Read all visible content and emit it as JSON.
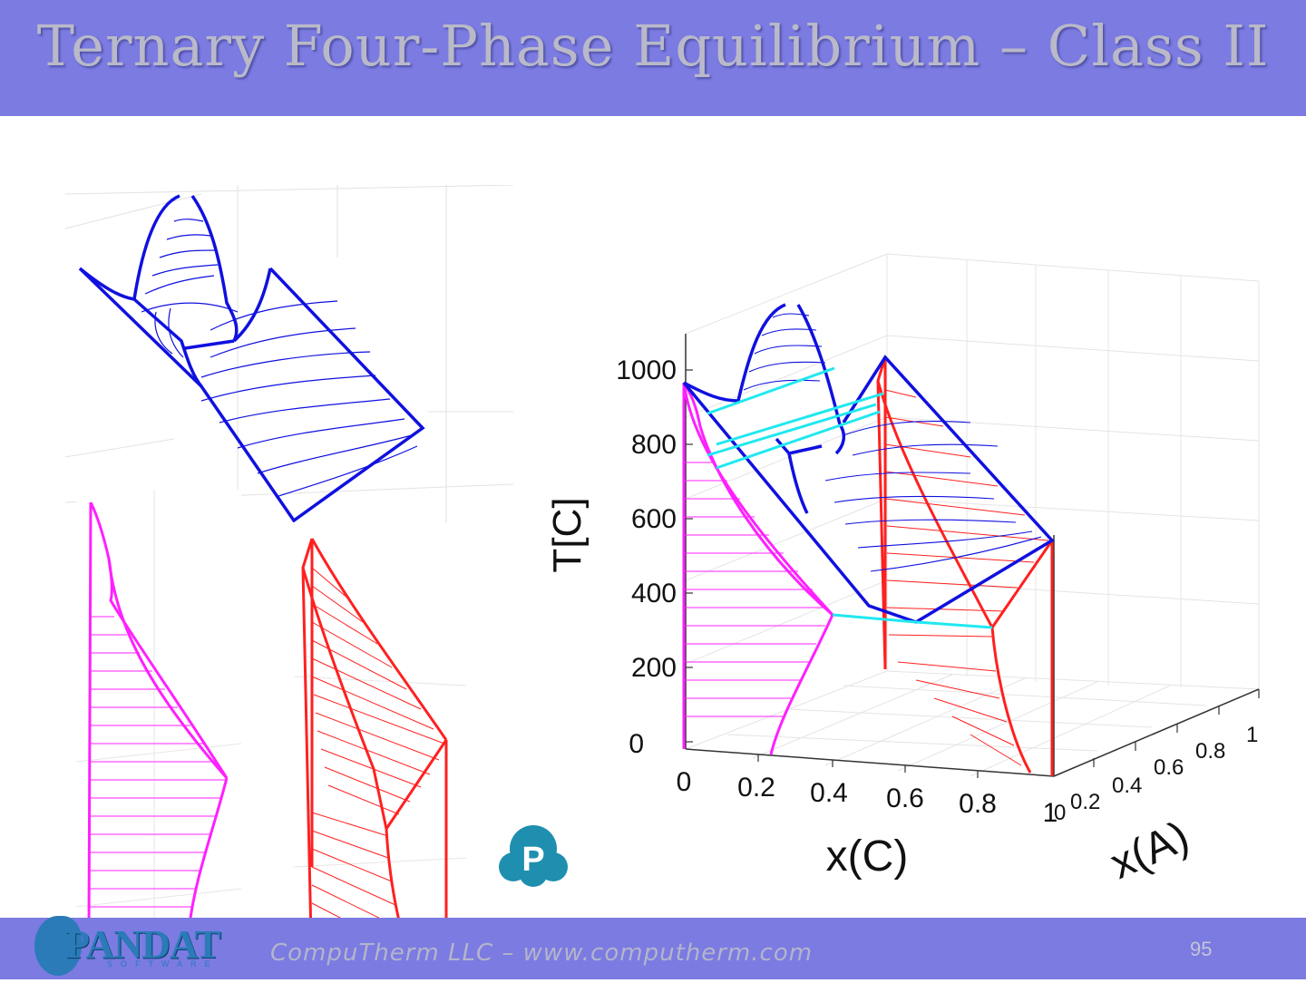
{
  "slide": {
    "title": "Ternary Four-Phase Equilibrium – Class II",
    "footer": "CompuTherm LLC – www.computherm.com",
    "page_number": "95"
  },
  "logo": {
    "pandat_word": "PANDAT",
    "pandat_sub": "SOFTWARE",
    "p_badge": "P"
  },
  "colors": {
    "header": "#7b7be2",
    "liquid_surface": "#1010e0",
    "phase_magenta": "#ff20ff",
    "phase_red": "#ff2020",
    "four_phase_plane": "#20e8f0"
  },
  "chart_data": {
    "type": "surface-3d",
    "title": "",
    "ylabel": "T[C]",
    "xlabel": "x(C)",
    "zlabel": "x(A)",
    "y_ticks": [
      "0",
      "200",
      "400",
      "600",
      "800",
      "1000"
    ],
    "x_ticks": [
      "0",
      "0.2",
      "0.4",
      "0.6",
      "0.8",
      "1"
    ],
    "z_ticks": [
      "0",
      "0.2",
      "0.4",
      "0.6",
      "0.8",
      "1"
    ],
    "ylim": [
      0,
      1100
    ],
    "xlim": [
      0,
      1
    ],
    "zlim": [
      0,
      1
    ],
    "grid": true,
    "surfaces": [
      {
        "color": "blue",
        "panel": "top-left"
      },
      {
        "color": "magenta",
        "panel": "bottom-left"
      },
      {
        "color": "red",
        "panel": "bottom-middle"
      }
    ]
  }
}
